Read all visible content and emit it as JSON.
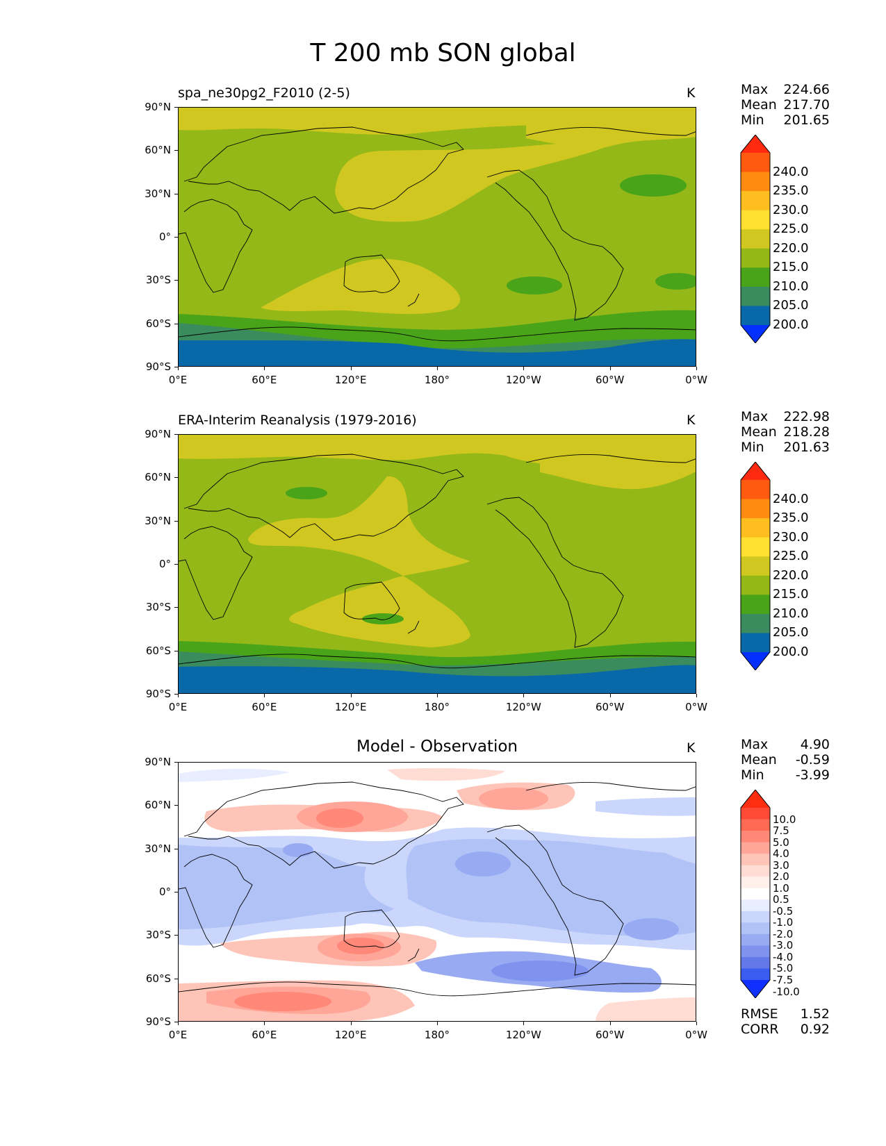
{
  "title": "T 200 mb SON global",
  "axes": {
    "lat_ticks": [
      "90°N",
      "60°N",
      "30°N",
      "0°",
      "30°S",
      "60°S",
      "90°S"
    ],
    "lon_ticks": [
      "0°E",
      "60°E",
      "120°E",
      "180°",
      "120°W",
      "60°W",
      "0°W"
    ]
  },
  "panels": [
    {
      "id": "model",
      "title": "spa_ne30pg2_F2010 (2-5)",
      "units": "K",
      "stats": [
        {
          "label": "Max",
          "value": "224.66"
        },
        {
          "label": "Mean",
          "value": "217.70"
        },
        {
          "label": "Min",
          "value": "201.65"
        }
      ],
      "colorbar": {
        "levels": [
          "240.0",
          "235.0",
          "230.0",
          "225.0",
          "220.0",
          "215.0",
          "210.0",
          "205.0",
          "200.0"
        ],
        "colors": [
          "#ff2a10",
          "#ff5a10",
          "#ff8c10",
          "#ffbe20",
          "#ffe030",
          "#d0c820",
          "#94b818",
          "#4aa41a",
          "#3a8b5e",
          "#0868a8",
          "#0430ff"
        ]
      }
    },
    {
      "id": "obs",
      "title": "ERA-Interim Reanalysis (1979-2016)",
      "units": "K",
      "stats": [
        {
          "label": "Max",
          "value": "222.98"
        },
        {
          "label": "Mean",
          "value": "218.28"
        },
        {
          "label": "Min",
          "value": "201.63"
        }
      ],
      "colorbar": {
        "levels": [
          "240.0",
          "235.0",
          "230.0",
          "225.0",
          "220.0",
          "215.0",
          "210.0",
          "205.0",
          "200.0"
        ],
        "colors": [
          "#ff2a10",
          "#ff5a10",
          "#ff8c10",
          "#ffbe20",
          "#ffe030",
          "#d0c820",
          "#94b818",
          "#4aa41a",
          "#3a8b5e",
          "#0868a8",
          "#0430ff"
        ]
      }
    },
    {
      "id": "diff",
      "title": "Model - Observation",
      "units": "K",
      "stats": [
        {
          "label": "Max",
          "value": "4.90"
        },
        {
          "label": "Mean",
          "value": "-0.59"
        },
        {
          "label": "Min",
          "value": "-3.99"
        }
      ],
      "colorbar": {
        "levels": [
          "10.0",
          "7.5",
          "5.0",
          "4.0",
          "3.0",
          "2.0",
          "1.0",
          "0.5",
          "-0.5",
          "-1.0",
          "-2.0",
          "-3.0",
          "-4.0",
          "-5.0",
          "-7.5",
          "-10.0"
        ],
        "colors": [
          "#ff2e10",
          "#ff4a35",
          "#ff6a55",
          "#ff8878",
          "#ffa698",
          "#ffc4b8",
          "#ffdcd4",
          "#fff0ec",
          "#ffffff",
          "#e8eeff",
          "#cad6fb",
          "#b0c2f6",
          "#98abf2",
          "#7f93ee",
          "#6379ea",
          "#3a5cf0",
          "#1030ff"
        ]
      },
      "extra_stats": [
        {
          "label": "RMSE",
          "value": "1.52"
        },
        {
          "label": "CORR",
          "value": "0.92"
        }
      ]
    }
  ]
}
